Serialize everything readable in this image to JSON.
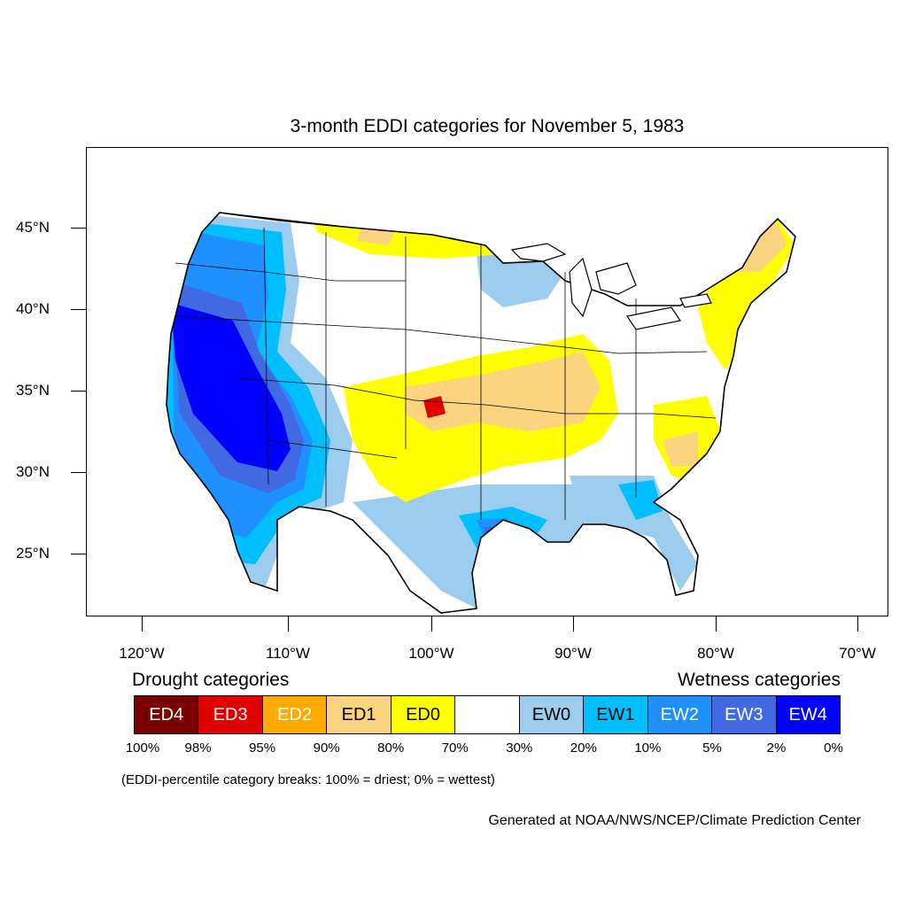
{
  "title": "3-month EDDI categories for November 5, 1983",
  "lat_labels": [
    "45°N",
    "40°N",
    "35°N",
    "30°N",
    "25°N"
  ],
  "lon_labels": [
    "120°W",
    "110°W",
    "100°W",
    "90°W",
    "80°W",
    "70°W"
  ],
  "legend": {
    "drought_heading": "Drought categories",
    "wetness_heading": "Wetness categories",
    "categories": [
      {
        "label": "ED4",
        "color": "#7a0000",
        "text_color": "#ffffff"
      },
      {
        "label": "ED3",
        "color": "#e10000",
        "text_color": "#ffffff"
      },
      {
        "label": "ED2",
        "color": "#ffaa00",
        "text_color": "#ffffff"
      },
      {
        "label": "ED1",
        "color": "#fcd37f",
        "text_color": "#000000"
      },
      {
        "label": "ED0",
        "color": "#ffff00",
        "text_color": "#000000"
      },
      {
        "label": "",
        "color": "#ffffff",
        "text_color": "#000000"
      },
      {
        "label": "EW0",
        "color": "#9ccdee",
        "text_color": "#000000"
      },
      {
        "label": "EW1",
        "color": "#00bfff",
        "text_color": "#000000"
      },
      {
        "label": "EW2",
        "color": "#1e90ff",
        "text_color": "#ffffff"
      },
      {
        "label": "EW3",
        "color": "#4169e1",
        "text_color": "#ffffff"
      },
      {
        "label": "EW4",
        "color": "#0000ff",
        "text_color": "#ffffff"
      }
    ],
    "breaks": [
      "100%",
      "98%",
      "95%",
      "90%",
      "80%",
      "70%",
      "30%",
      "20%",
      "10%",
      "5%",
      "2%",
      "0%"
    ]
  },
  "note": "(EDDI-percentile category breaks: 100% = driest; 0% = wettest)",
  "credit": "Generated at NOAA/NWS/NCEP/Climate Prediction Center"
}
